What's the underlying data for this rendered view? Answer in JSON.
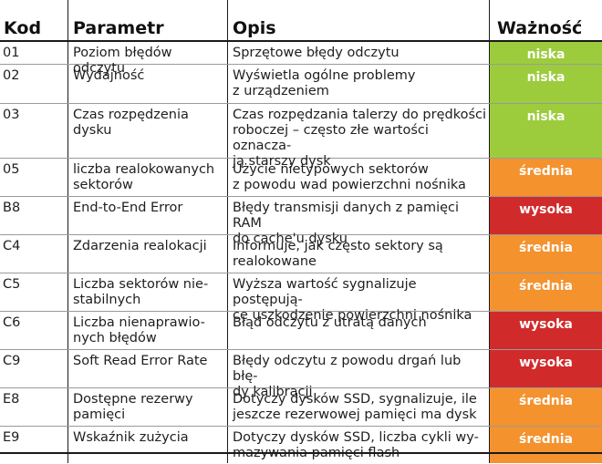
{
  "table": {
    "headers": {
      "code": "Kod",
      "parameter": "Parametr",
      "description": "Opis",
      "importance": "Ważność"
    },
    "rows": [
      {
        "code": "01",
        "parameter": "Poziom błędów odczytu",
        "description": "Sprzętowe błędy odczytu",
        "importance": "niska",
        "level": "low"
      },
      {
        "code": "02",
        "parameter": "Wydajność",
        "description": "Wyświetla ogólne problemy\nz urządzeniem",
        "importance": "niska",
        "level": "low"
      },
      {
        "code": "03",
        "parameter": "Czas rozpędzenia\ndysku",
        "description": "Czas rozpędzania talerzy do prędkości\nroboczej – często złe wartości oznacza-\nją starszy dysk",
        "importance": "niska",
        "level": "low"
      },
      {
        "code": "05",
        "parameter": "liczba realokowanych\nsektorów",
        "description": "Użycie nietypowych sektorów\nz powodu wad powierzchni nośnika",
        "importance": "średnia",
        "level": "medium"
      },
      {
        "code": "B8",
        "parameter": "End-to-End Error",
        "description": "Błędy transmisji danych z pamięci RAM\ndo cache'u dysku",
        "importance": "wysoka",
        "level": "high"
      },
      {
        "code": "C4",
        "parameter": "Zdarzenia realokacji",
        "description": "Informuje, jak często sektory są\nrealokowane",
        "importance": "średnia",
        "level": "medium"
      },
      {
        "code": "C5",
        "parameter": "Liczba sektorów nie-\nstabilnych",
        "description": "Wyższa wartość sygnalizuje postępują-\nce uszkodzenie powierzchni nośnika",
        "importance": "średnia",
        "level": "medium"
      },
      {
        "code": "C6",
        "parameter": "Liczba nienaprawio-\nnych błędów",
        "description": "Błąd odczytu z utratą danych",
        "importance": "wysoka",
        "level": "high"
      },
      {
        "code": "C9",
        "parameter": "Soft Read Error Rate",
        "description": "Błędy odczytu z powodu drgań lub błę-\ndy kalibracji",
        "importance": "wysoka",
        "level": "high"
      },
      {
        "code": "E8",
        "parameter": "Dostępne rezerwy\npamięci",
        "description": "Dotyczy dysków SSD, sygnalizuje, ile\njeszcze rezerwowej pamięci ma dysk",
        "importance": "średnia",
        "level": "medium"
      },
      {
        "code": "E9",
        "parameter": "Wskaźnik zużycia",
        "description": "Dotyczy dysków SSD, liczba cykli wy-\nmazywania pamięci flash",
        "importance": "średnia",
        "level": "medium"
      }
    ]
  },
  "colors": {
    "low": "#9ccc3c",
    "medium": "#f4922e",
    "high": "#d12a2a"
  }
}
